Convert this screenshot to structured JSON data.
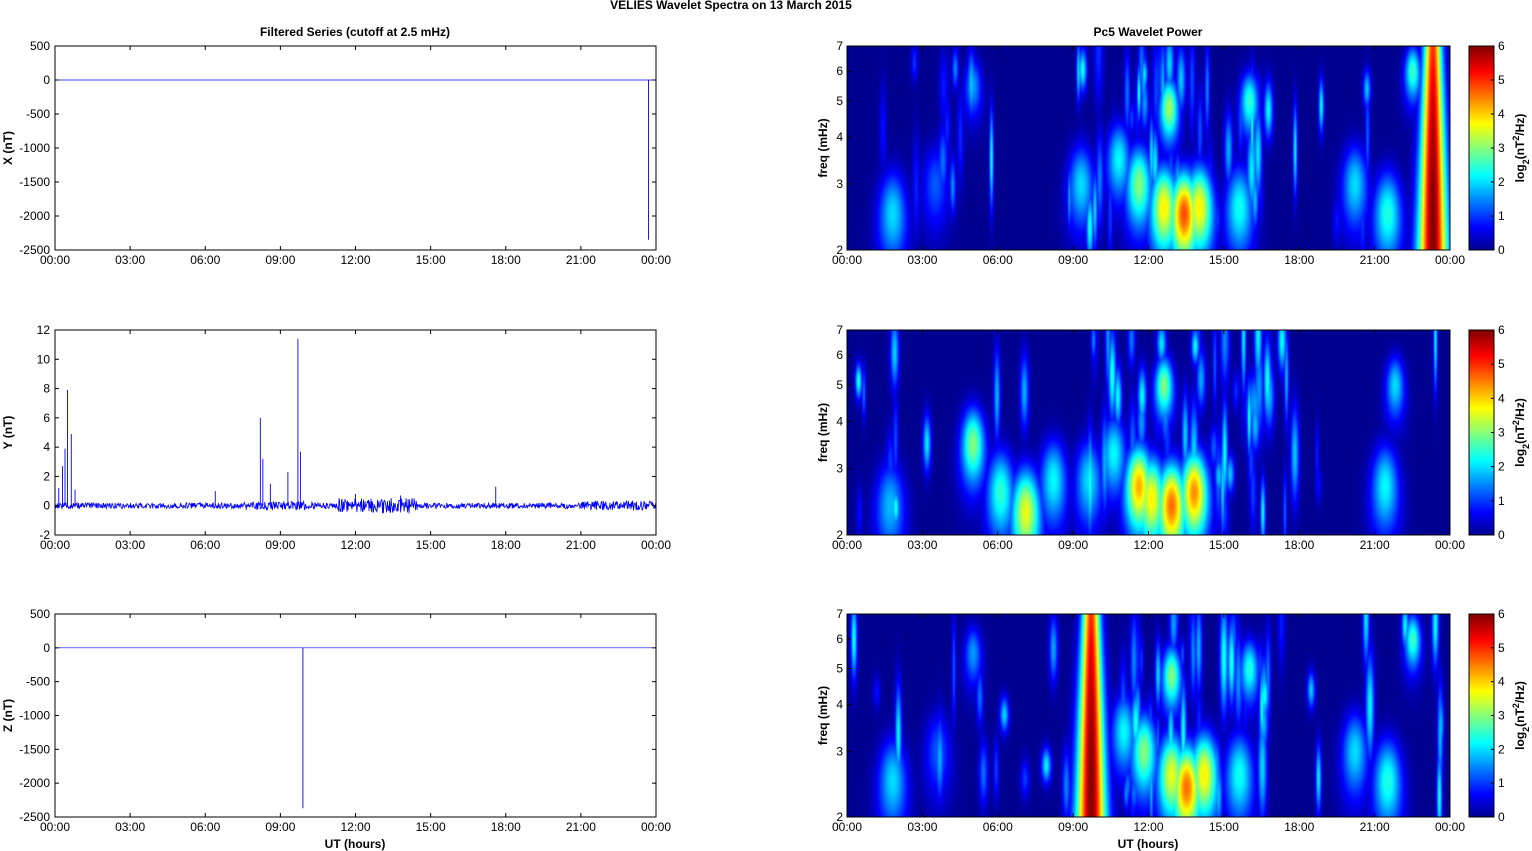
{
  "figure": {
    "title": "VELIES Wavelet Spectra on 13 March    2015",
    "left_title": "Filtered Series (cutoff at 2.5 mHz)",
    "right_title": "Pc5 Wavelet Power",
    "xlabel": "UT (hours)"
  },
  "colors": {
    "trace": "#0000ff",
    "jet": [
      "#00008f",
      "#0000ff",
      "#00ffff",
      "#ffff00",
      "#ff0000",
      "#800000"
    ]
  },
  "chart_data": [
    {
      "type": "line",
      "title": "Filtered Series (cutoff at 2.5 mHz)",
      "ylabel": "X (nT)",
      "xlim": [
        0,
        24
      ],
      "ylim": [
        -2500,
        500
      ],
      "xticks": [
        "00:00",
        "03:00",
        "06:00",
        "09:00",
        "12:00",
        "15:00",
        "18:00",
        "21:00",
        "00:00"
      ],
      "yticks": [
        500,
        0,
        -500,
        -1000,
        -1500,
        -2000,
        -2500
      ],
      "series": [
        {
          "baseline": 0,
          "spikes": [
            {
              "x": 23.7,
              "y": -2350
            }
          ]
        }
      ]
    },
    {
      "type": "line",
      "ylabel": "Y (nT)",
      "xlim": [
        0,
        24
      ],
      "ylim": [
        -2,
        12
      ],
      "xticks": [
        "00:00",
        "03:00",
        "06:00",
        "09:00",
        "12:00",
        "15:00",
        "18:00",
        "21:00",
        "00:00"
      ],
      "yticks": [
        12,
        10,
        8,
        6,
        4,
        2,
        0,
        -2
      ],
      "series": [
        {
          "baseline": 0,
          "noise_amplitude": 0.2,
          "spikes": [
            {
              "x": 0.15,
              "y": 1.2
            },
            {
              "x": 0.3,
              "y": 2.7
            },
            {
              "x": 0.4,
              "y": 3.9
            },
            {
              "x": 0.5,
              "y": 7.9
            },
            {
              "x": 0.65,
              "y": 4.9
            },
            {
              "x": 0.8,
              "y": 1.1
            },
            {
              "x": 6.4,
              "y": 1.0
            },
            {
              "x": 8.2,
              "y": 6.0
            },
            {
              "x": 8.3,
              "y": 3.2
            },
            {
              "x": 8.6,
              "y": 1.5
            },
            {
              "x": 9.3,
              "y": 2.3
            },
            {
              "x": 9.7,
              "y": 11.4
            },
            {
              "x": 9.8,
              "y": 3.7
            },
            {
              "x": 12.0,
              "y": 0.8
            },
            {
              "x": 13.8,
              "y": 0.7
            },
            {
              "x": 17.6,
              "y": 1.3
            }
          ]
        }
      ]
    },
    {
      "type": "line",
      "ylabel": "Z (nT)",
      "xlim": [
        0,
        24
      ],
      "ylim": [
        -2500,
        500
      ],
      "xticks": [
        "00:00",
        "03:00",
        "06:00",
        "09:00",
        "12:00",
        "15:00",
        "18:00",
        "21:00",
        "00:00"
      ],
      "yticks": [
        500,
        0,
        -500,
        -1000,
        -1500,
        -2000,
        -2500
      ],
      "xlabel": "UT (hours)",
      "series": [
        {
          "baseline": 0,
          "spikes": [
            {
              "x": 9.9,
              "y": -2370
            }
          ]
        }
      ]
    },
    {
      "type": "heatmap",
      "title": "Pc5 Wavelet Power",
      "ylabel": "freq (mHz)",
      "colorbar_label": "log2(nT^2/Hz)",
      "xlim": [
        0,
        24
      ],
      "ylim": [
        2,
        7
      ],
      "yscale": "log",
      "clim": [
        0,
        6
      ],
      "xticks": [
        "00:00",
        "03:00",
        "06:00",
        "09:00",
        "12:00",
        "15:00",
        "18:00",
        "21:00",
        "00:00"
      ],
      "yticks": [
        2,
        3,
        4,
        5,
        6,
        7
      ],
      "cticks": [
        0,
        1,
        2,
        3,
        4,
        5,
        6
      ],
      "blobs": [
        {
          "t": 1.8,
          "f": 2.5,
          "v": 2.0
        },
        {
          "t": 3.5,
          "f": 3.0,
          "v": 1.2
        },
        {
          "t": 5.0,
          "f": 5.5,
          "v": 1.6
        },
        {
          "t": 9.3,
          "f": 3.0,
          "v": 2.0
        },
        {
          "t": 10.8,
          "f": 3.5,
          "v": 2.2
        },
        {
          "t": 11.6,
          "f": 3.0,
          "v": 3.0
        },
        {
          "t": 12.6,
          "f": 2.6,
          "v": 3.8
        },
        {
          "t": 13.4,
          "f": 2.5,
          "v": 4.8
        },
        {
          "t": 14.0,
          "f": 2.6,
          "v": 3.8
        },
        {
          "t": 12.8,
          "f": 4.8,
          "v": 3.2
        },
        {
          "t": 15.6,
          "f": 2.6,
          "v": 2.3
        },
        {
          "t": 16.0,
          "f": 5.0,
          "v": 2.5
        },
        {
          "t": 20.2,
          "f": 3.0,
          "v": 2.0
        },
        {
          "t": 21.5,
          "f": 2.5,
          "v": 2.4
        },
        {
          "t": 23.3,
          "f": 2.4,
          "v": 6.0
        },
        {
          "t": 22.5,
          "f": 6.0,
          "v": 2.6
        }
      ]
    },
    {
      "type": "heatmap",
      "ylabel": "freq (mHz)",
      "colorbar_label": "log2(nT^2/Hz)",
      "xlim": [
        0,
        24
      ],
      "ylim": [
        2,
        7
      ],
      "yscale": "log",
      "clim": [
        0,
        6
      ],
      "xticks": [
        "00:00",
        "03:00",
        "06:00",
        "09:00",
        "12:00",
        "15:00",
        "18:00",
        "21:00",
        "00:00"
      ],
      "yticks": [
        2,
        3,
        4,
        5,
        6,
        7
      ],
      "cticks": [
        0,
        1,
        2,
        3,
        4,
        5,
        6
      ],
      "blobs": [
        {
          "t": 1.7,
          "f": 2.4,
          "v": 1.8
        },
        {
          "t": 5.0,
          "f": 3.5,
          "v": 3.0
        },
        {
          "t": 6.1,
          "f": 2.6,
          "v": 2.5
        },
        {
          "t": 7.1,
          "f": 2.3,
          "v": 3.6
        },
        {
          "t": 8.2,
          "f": 2.8,
          "v": 2.2
        },
        {
          "t": 9.6,
          "f": 2.8,
          "v": 2.0
        },
        {
          "t": 10.6,
          "f": 3.3,
          "v": 2.2
        },
        {
          "t": 11.6,
          "f": 2.7,
          "v": 4.2
        },
        {
          "t": 12.1,
          "f": 2.5,
          "v": 3.8
        },
        {
          "t": 12.9,
          "f": 2.4,
          "v": 4.6
        },
        {
          "t": 13.8,
          "f": 2.6,
          "v": 4.4
        },
        {
          "t": 12.6,
          "f": 5.0,
          "v": 3.0
        },
        {
          "t": 16.2,
          "f": 4.5,
          "v": 1.6
        },
        {
          "t": 21.4,
          "f": 2.7,
          "v": 2.2
        },
        {
          "t": 21.8,
          "f": 5.0,
          "v": 2.0
        }
      ]
    },
    {
      "type": "heatmap",
      "xlabel": "UT (hours)",
      "ylabel": "freq (mHz)",
      "colorbar_label": "log2(nT^2/Hz)",
      "xlim": [
        0,
        24
      ],
      "ylim": [
        2,
        7
      ],
      "yscale": "log",
      "clim": [
        0,
        6
      ],
      "xticks": [
        "00:00",
        "03:00",
        "06:00",
        "09:00",
        "12:00",
        "15:00",
        "18:00",
        "21:00",
        "00:00"
      ],
      "yticks": [
        2,
        3,
        4,
        5,
        6,
        7
      ],
      "cticks": [
        0,
        1,
        2,
        3,
        4,
        5,
        6
      ],
      "blobs": [
        {
          "t": 1.8,
          "f": 2.5,
          "v": 2.0
        },
        {
          "t": 3.6,
          "f": 3.0,
          "v": 1.2
        },
        {
          "t": 5.0,
          "f": 5.5,
          "v": 1.6
        },
        {
          "t": 9.7,
          "f": 2.4,
          "v": 6.0
        },
        {
          "t": 11.0,
          "f": 3.4,
          "v": 2.2
        },
        {
          "t": 11.8,
          "f": 3.0,
          "v": 3.0
        },
        {
          "t": 12.9,
          "f": 2.6,
          "v": 3.6
        },
        {
          "t": 13.5,
          "f": 2.4,
          "v": 4.6
        },
        {
          "t": 14.2,
          "f": 2.6,
          "v": 3.8
        },
        {
          "t": 12.9,
          "f": 4.8,
          "v": 3.0
        },
        {
          "t": 15.6,
          "f": 2.6,
          "v": 2.3
        },
        {
          "t": 16.0,
          "f": 5.0,
          "v": 2.4
        },
        {
          "t": 20.2,
          "f": 3.0,
          "v": 2.0
        },
        {
          "t": 21.5,
          "f": 2.5,
          "v": 2.4
        },
        {
          "t": 22.5,
          "f": 6.0,
          "v": 2.6
        }
      ]
    }
  ]
}
